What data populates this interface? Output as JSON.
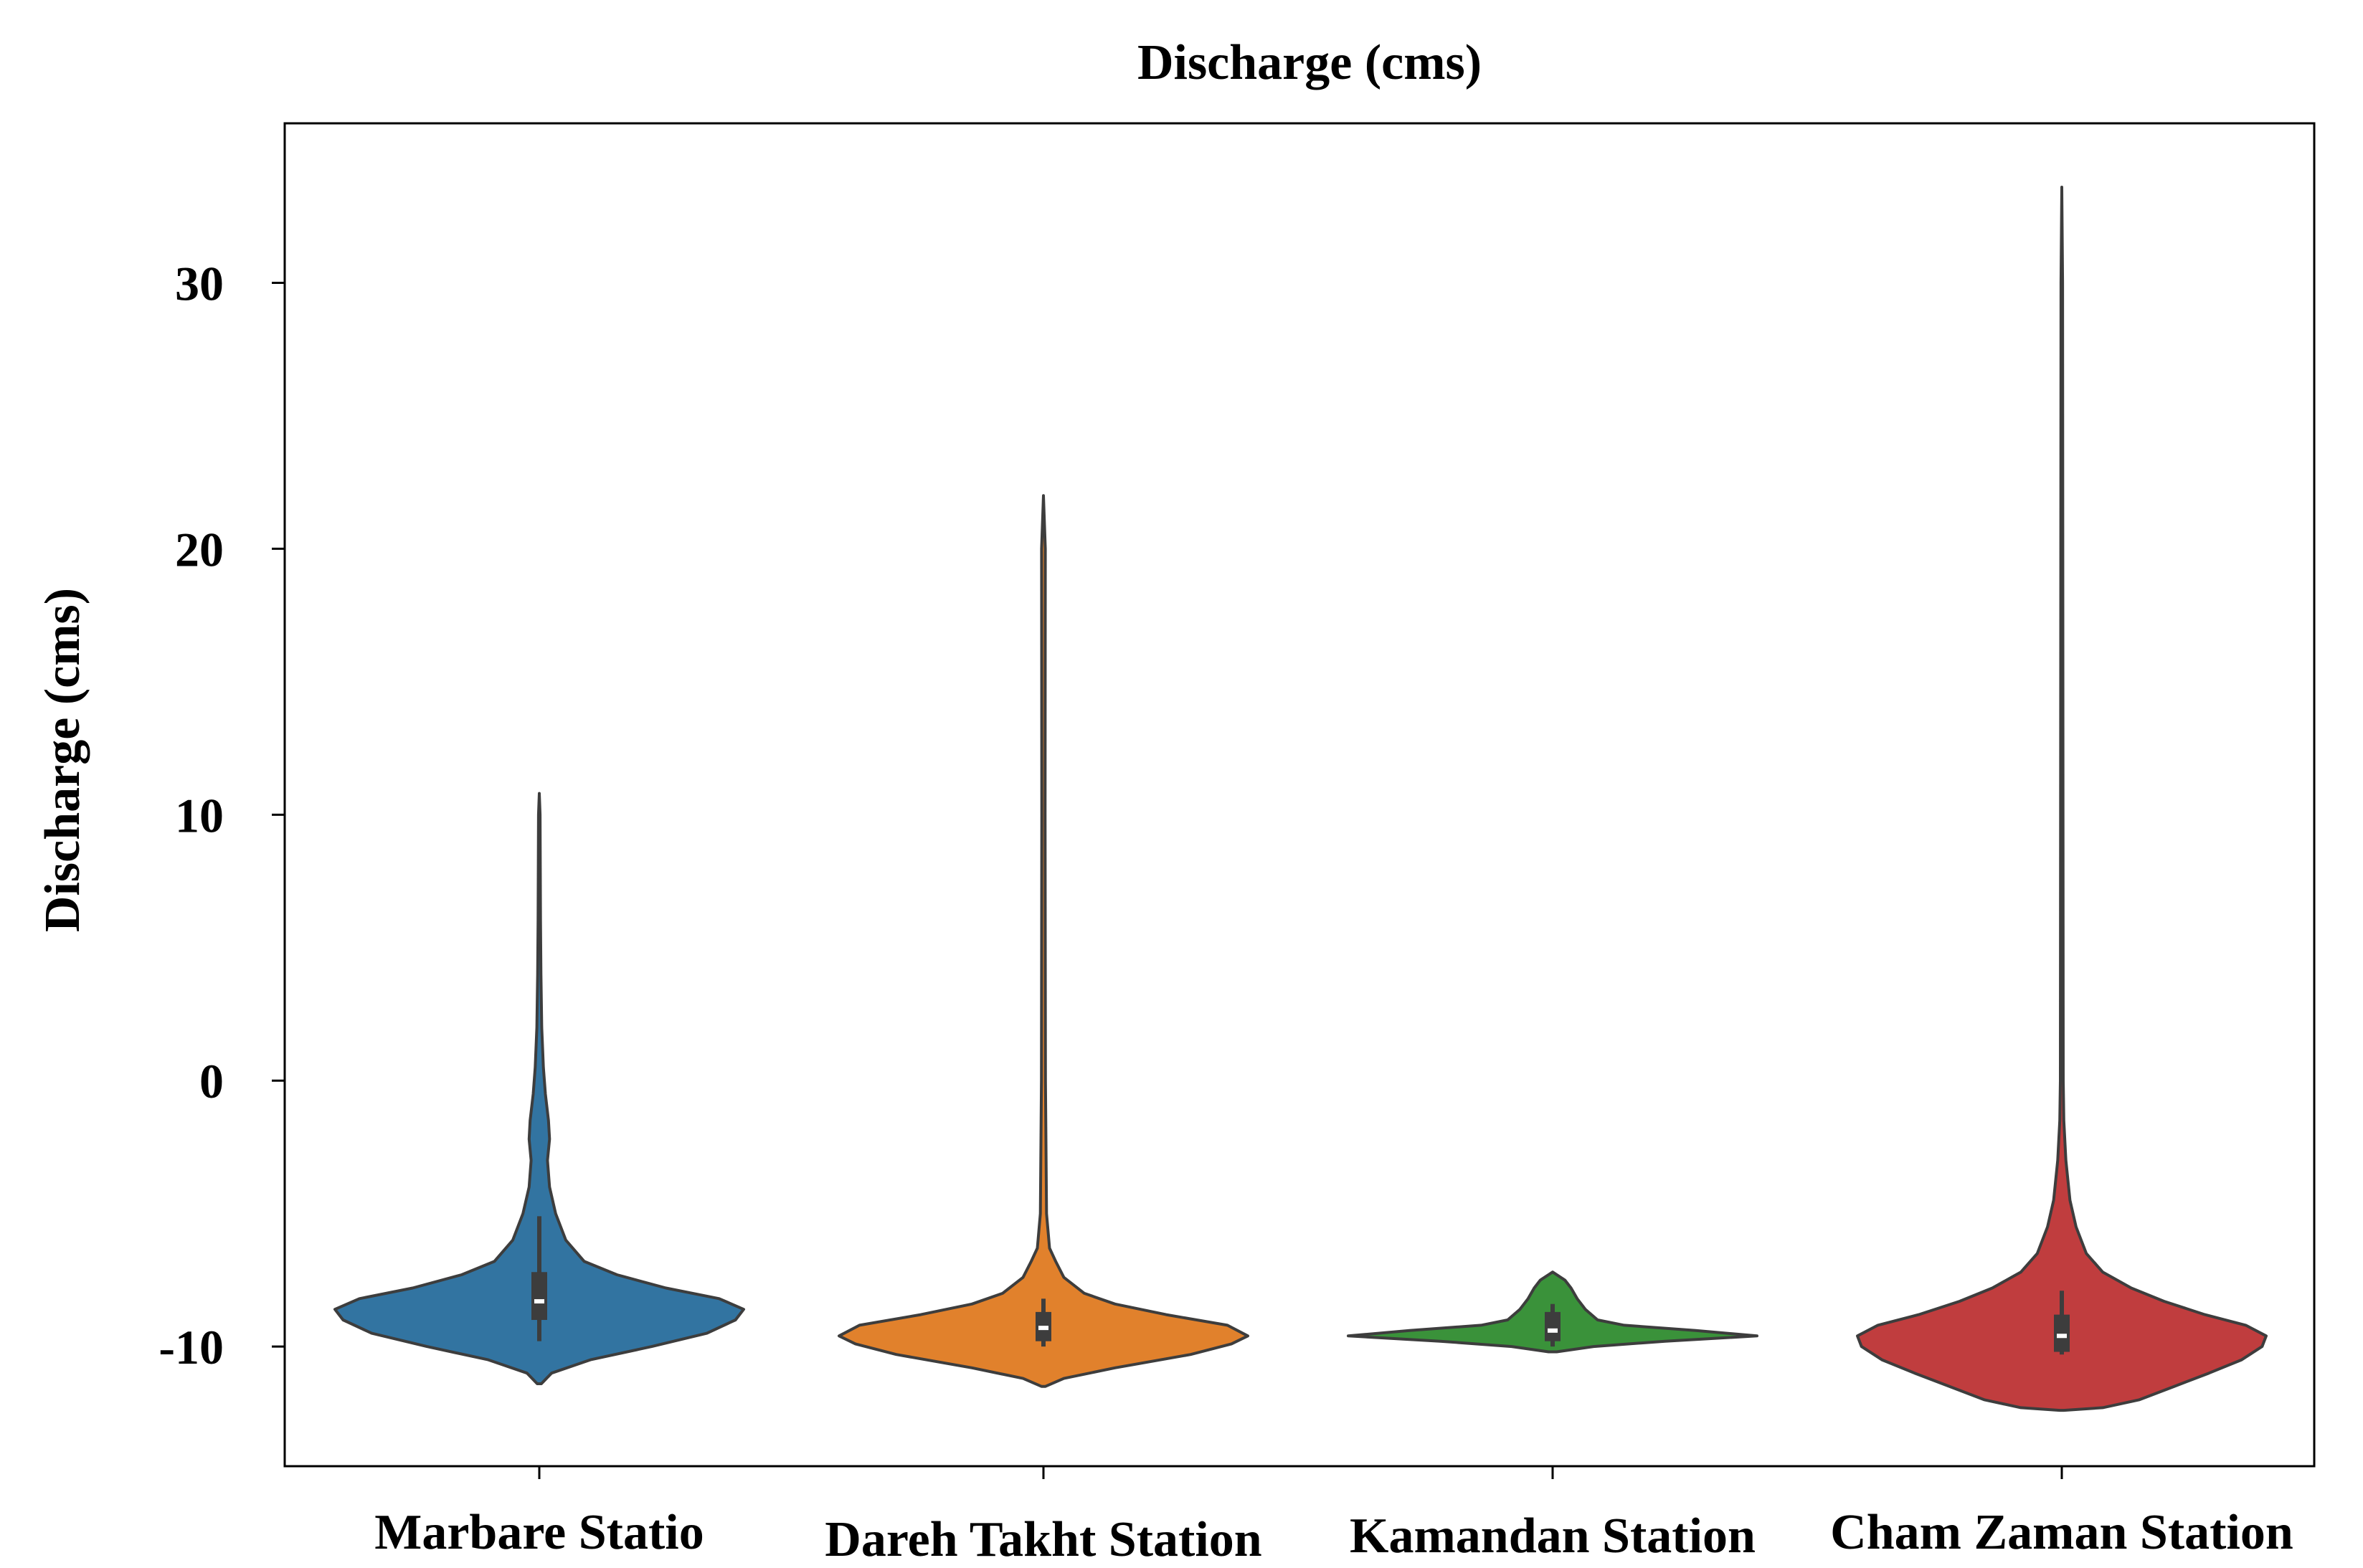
{
  "chart_data": {
    "type": "violin",
    "title": "Discharge (cms)",
    "xlabel": "",
    "ylabel": "Discharge (cms)",
    "ylim": [
      -14.5,
      36
    ],
    "yticks": [
      -10,
      0,
      10,
      20,
      30
    ],
    "ytick_labels": [
      "-10",
      "0",
      "10",
      "20",
      "30"
    ],
    "categories": [
      "Marbare Statio",
      "Dareh Takht Station",
      "Kamandan Station",
      "Cham Zaman Station"
    ],
    "colors": [
      "#3274a1",
      "#e1812c",
      "#3a923a",
      "#c03d3e"
    ],
    "grid": false,
    "legend": "none",
    "series": [
      {
        "name": "Marbare Statio",
        "min": -11.4,
        "max": 10.8,
        "q1": -9.0,
        "median": -8.3,
        "q3": -7.2,
        "whisker_low": -9.8,
        "whisker_high": -5.1,
        "profile": [
          [
            -11.4,
            0.01
          ],
          [
            -11.0,
            0.06
          ],
          [
            -10.5,
            0.25
          ],
          [
            -10.0,
            0.55
          ],
          [
            -9.5,
            0.82
          ],
          [
            -9.0,
            0.96
          ],
          [
            -8.6,
            1.0
          ],
          [
            -8.2,
            0.88
          ],
          [
            -7.8,
            0.62
          ],
          [
            -7.3,
            0.38
          ],
          [
            -6.8,
            0.22
          ],
          [
            -6.0,
            0.13
          ],
          [
            -5.0,
            0.08
          ],
          [
            -4.0,
            0.05
          ],
          [
            -3.0,
            0.04
          ],
          [
            -2.2,
            0.05
          ],
          [
            -1.5,
            0.045
          ],
          [
            -0.5,
            0.03
          ],
          [
            0.5,
            0.02
          ],
          [
            2.0,
            0.012
          ],
          [
            4.0,
            0.008
          ],
          [
            6.0,
            0.006
          ],
          [
            8.0,
            0.005
          ],
          [
            10.0,
            0.004
          ],
          [
            10.8,
            0.0
          ]
        ]
      },
      {
        "name": "Dareh Takht Station",
        "min": -11.5,
        "max": 22.0,
        "q1": -9.8,
        "median": -9.3,
        "q3": -8.7,
        "whisker_low": -10.0,
        "whisker_high": -8.2,
        "profile": [
          [
            -11.5,
            0.01
          ],
          [
            -11.2,
            0.1
          ],
          [
            -10.8,
            0.35
          ],
          [
            -10.3,
            0.72
          ],
          [
            -9.9,
            0.92
          ],
          [
            -9.6,
            1.0
          ],
          [
            -9.2,
            0.9
          ],
          [
            -8.8,
            0.6
          ],
          [
            -8.4,
            0.35
          ],
          [
            -8.0,
            0.2
          ],
          [
            -7.4,
            0.1
          ],
          [
            -6.8,
            0.06
          ],
          [
            -6.3,
            0.03
          ],
          [
            -5.0,
            0.015
          ],
          [
            0.0,
            0.01
          ],
          [
            10.0,
            0.008
          ],
          [
            20.0,
            0.009
          ],
          [
            22.0,
            0.0
          ]
        ]
      },
      {
        "name": "Kamandan Station",
        "min": -10.2,
        "max": -7.2,
        "q1": -9.8,
        "median": -9.4,
        "q3": -8.7,
        "whisker_low": -10.0,
        "whisker_high": -8.4,
        "profile": [
          [
            -10.2,
            0.02
          ],
          [
            -10.0,
            0.2
          ],
          [
            -9.8,
            0.55
          ],
          [
            -9.6,
            1.0
          ],
          [
            -9.4,
            0.7
          ],
          [
            -9.2,
            0.35
          ],
          [
            -9.0,
            0.22
          ],
          [
            -8.6,
            0.16
          ],
          [
            -8.2,
            0.12
          ],
          [
            -7.8,
            0.09
          ],
          [
            -7.5,
            0.06
          ],
          [
            -7.2,
            0.0
          ]
        ]
      },
      {
        "name": "Cham Zaman Station",
        "min": -12.4,
        "max": 33.6,
        "q1": -10.2,
        "median": -9.6,
        "q3": -8.8,
        "whisker_low": -10.3,
        "whisker_high": -7.9,
        "profile": [
          [
            -12.4,
            0.01
          ],
          [
            -12.3,
            0.2
          ],
          [
            -12.0,
            0.38
          ],
          [
            -11.5,
            0.55
          ],
          [
            -11.0,
            0.72
          ],
          [
            -10.5,
            0.88
          ],
          [
            -10.0,
            0.98
          ],
          [
            -9.6,
            1.0
          ],
          [
            -9.2,
            0.9
          ],
          [
            -8.8,
            0.7
          ],
          [
            -8.3,
            0.5
          ],
          [
            -7.8,
            0.34
          ],
          [
            -7.2,
            0.2
          ],
          [
            -6.5,
            0.12
          ],
          [
            -5.5,
            0.07
          ],
          [
            -4.5,
            0.04
          ],
          [
            -3.0,
            0.02
          ],
          [
            -1.5,
            0.01
          ],
          [
            0.0,
            0.007
          ],
          [
            10.0,
            0.006
          ],
          [
            20.0,
            0.005
          ],
          [
            30.0,
            0.004
          ],
          [
            33.6,
            0.0
          ]
        ]
      }
    ]
  }
}
